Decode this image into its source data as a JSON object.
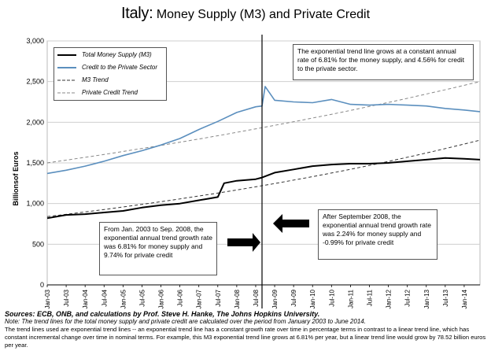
{
  "title_prefix": "Italy:",
  "title_main": "Money Supply (M3) and Private Credit",
  "annotations": {
    "top_right": "The exponential trend line grows at a constant annual rate of  6.81% for the money supply, and  4.56% for credit to the private sector.",
    "left": "From Jan. 2003 to Sep. 2008, the exponential annual trend growth rate was  6.81% for money supply and  9.74%  for private credit",
    "right": "After September 2008, the exponential annual trend growth rate was  2.24% for money supply and  -0.99% for private credit"
  },
  "footer": {
    "sources": "Sources: ECB, ONB, and calculations by Prof. Steve H. Hanke, The Johns Hopkins University.",
    "note": "Note: The trend lines for the total money supply and private credit are calculated over the period from January 2003 to June 2014.",
    "body": "The trend lines used are exponential trend lines -- an exponential trend line has a constant growth rate over time in percentage terms in contrast to a linear trend line, which has constant incremental change over time in nominal terms. For example, this M3 exponential trend line grows at 6.81% per year, but a linear trend line would grow by  78.52   billion euros per year."
  },
  "colors": {
    "m3": "#000000",
    "credit": "#5b8fbe",
    "m3_trend": "#333333",
    "credit_trend": "#888888",
    "vline": "#000000",
    "grid": "#cfcfcf"
  },
  "chart_data": {
    "type": "line",
    "ylabel": "Billionsof Euros",
    "ylim": [
      0,
      3000
    ],
    "yticks": [
      "0",
      "500",
      "1,000",
      "1,500",
      "2,000",
      "2,500",
      "3,000"
    ],
    "x_tick_labels": [
      "Jan-03",
      "Jul-03",
      "Jan-04",
      "Jul-04",
      "Jan-05",
      "Jul-05",
      "Jan-06",
      "Jul-06",
      "Jan-07",
      "Jul-07",
      "Jan-08",
      "Jul-08",
      "Jan-09",
      "Jul-09",
      "Jan-10",
      "Jul-10",
      "Jan-11",
      "Jul-11",
      "Jan-12",
      "Jul-12",
      "Jan-13",
      "Jul-13",
      "Jan-14"
    ],
    "x_range": [
      "2003-01",
      "2014-06"
    ],
    "vertical_marker": "2008-09",
    "grid": "horizontal",
    "legend_position": "top-left",
    "series": [
      {
        "name": "Total Money Supply (M3)",
        "style": "solid",
        "x": [
          "2003-01",
          "2003-07",
          "2004-01",
          "2004-07",
          "2005-01",
          "2005-07",
          "2006-01",
          "2006-07",
          "2007-01",
          "2007-04",
          "2007-07",
          "2007-09",
          "2008-01",
          "2008-07",
          "2008-09",
          "2009-01",
          "2009-07",
          "2010-01",
          "2010-07",
          "2011-01",
          "2011-07",
          "2012-01",
          "2012-07",
          "2013-01",
          "2013-07",
          "2014-01",
          "2014-06"
        ],
        "values": [
          820,
          860,
          870,
          890,
          910,
          950,
          980,
          1000,
          1040,
          1060,
          1080,
          1250,
          1280,
          1300,
          1320,
          1380,
          1420,
          1460,
          1480,
          1490,
          1490,
          1500,
          1520,
          1540,
          1560,
          1550,
          1540
        ]
      },
      {
        "name": "Credit to the Private Sector",
        "style": "solid",
        "x": [
          "2003-01",
          "2003-07",
          "2004-01",
          "2004-07",
          "2005-01",
          "2005-07",
          "2006-01",
          "2006-07",
          "2007-01",
          "2007-07",
          "2008-01",
          "2008-07",
          "2008-09",
          "2008-10",
          "2009-01",
          "2009-07",
          "2010-01",
          "2010-07",
          "2011-01",
          "2011-07",
          "2012-01",
          "2012-07",
          "2013-01",
          "2013-07",
          "2014-01",
          "2014-06"
        ],
        "values": [
          1370,
          1410,
          1460,
          1520,
          1590,
          1650,
          1720,
          1800,
          1910,
          2010,
          2120,
          2190,
          2200,
          2440,
          2270,
          2250,
          2240,
          2280,
          2220,
          2210,
          2220,
          2210,
          2200,
          2170,
          2150,
          2130
        ]
      },
      {
        "name": "M3 Trend",
        "style": "dashed",
        "x": [
          "2003-01",
          "2014-06"
        ],
        "values": [
          840,
          1780
        ],
        "trend": "exponential"
      },
      {
        "name": "Private Credit Trend",
        "style": "dashed",
        "x": [
          "2003-01",
          "2014-06"
        ],
        "values": [
          1500,
          2500
        ],
        "trend": "exponential"
      }
    ]
  }
}
